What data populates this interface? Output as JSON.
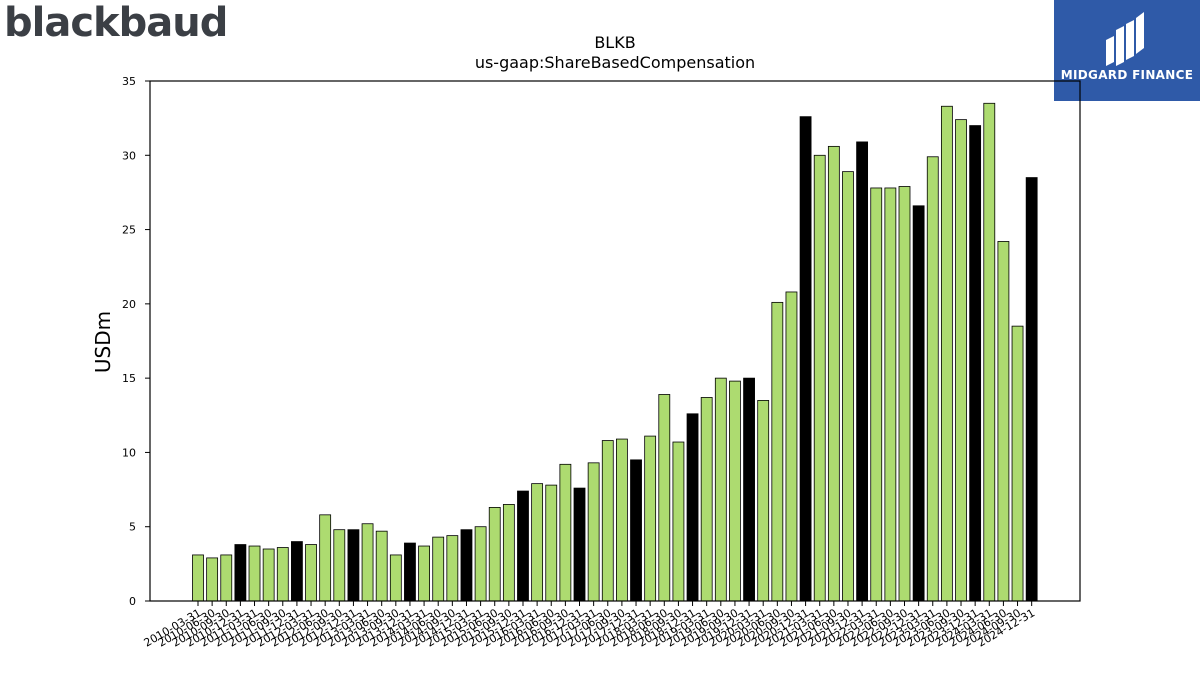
{
  "branding": {
    "company_logo_text": "blackbaud",
    "publisher_logo_text": "MIDGARD FINANCE"
  },
  "colors": {
    "bar_green": "#addb70",
    "bar_black": "#000000",
    "midgard_blue": "#2f5aa8",
    "logo_gray": "#3b3f45"
  },
  "chart_data": {
    "type": "bar",
    "title": "BLKB",
    "subtitle": "us-gaap:ShareBasedCompensation",
    "xlabel": "",
    "ylabel": "USDm",
    "ylim": [
      0,
      35
    ],
    "yticks": [
      0,
      5,
      10,
      15,
      20,
      25,
      30,
      35
    ],
    "grid": false,
    "legend": "none",
    "categories": [
      "2010-03-31",
      "2010-06-30",
      "2010-09-30",
      "2010-12-31",
      "2011-03-31",
      "2011-06-30",
      "2011-09-30",
      "2011-12-31",
      "2012-03-31",
      "2012-06-30",
      "2012-09-30",
      "2012-12-31",
      "2013-03-31",
      "2013-06-30",
      "2013-09-30",
      "2013-12-31",
      "2014-03-31",
      "2014-06-30",
      "2014-09-30",
      "2014-12-31",
      "2015-03-31",
      "2015-06-30",
      "2015-09-30",
      "2015-12-31",
      "2016-03-31",
      "2016-06-30",
      "2016-09-30",
      "2016-12-31",
      "2017-03-31",
      "2017-06-30",
      "2017-09-30",
      "2017-12-31",
      "2018-03-31",
      "2018-06-30",
      "2018-09-30",
      "2018-12-31",
      "2019-03-31",
      "2019-06-30",
      "2019-09-30",
      "2019-12-31",
      "2020-03-31",
      "2020-06-30",
      "2020-09-30",
      "2020-12-31",
      "2021-03-31",
      "2021-06-30",
      "2021-09-30",
      "2021-12-31",
      "2022-03-31",
      "2022-06-30",
      "2022-09-30",
      "2022-12-31",
      "2023-03-31",
      "2023-06-30",
      "2023-09-30",
      "2023-12-31",
      "2024-03-31",
      "2024-06-30",
      "2024-09-30",
      "2024-12-31"
    ],
    "values": [
      3.1,
      2.9,
      3.1,
      3.8,
      3.7,
      3.5,
      3.6,
      4.0,
      3.8,
      5.8,
      4.8,
      4.8,
      5.2,
      4.7,
      3.1,
      3.9,
      3.7,
      4.3,
      4.4,
      4.8,
      5.0,
      6.3,
      6.5,
      7.4,
      7.9,
      7.8,
      9.2,
      7.6,
      9.3,
      10.8,
      10.9,
      9.5,
      11.1,
      13.9,
      10.7,
      12.6,
      13.7,
      15.0,
      14.8,
      15.0,
      13.5,
      20.1,
      20.8,
      32.6,
      30.0,
      30.6,
      28.9,
      30.9,
      27.8,
      27.8,
      27.9,
      26.6,
      29.9,
      33.3,
      32.4,
      32.0,
      33.5,
      24.2,
      18.5,
      28.5
    ],
    "highlight_quarter_end": "12-31"
  }
}
